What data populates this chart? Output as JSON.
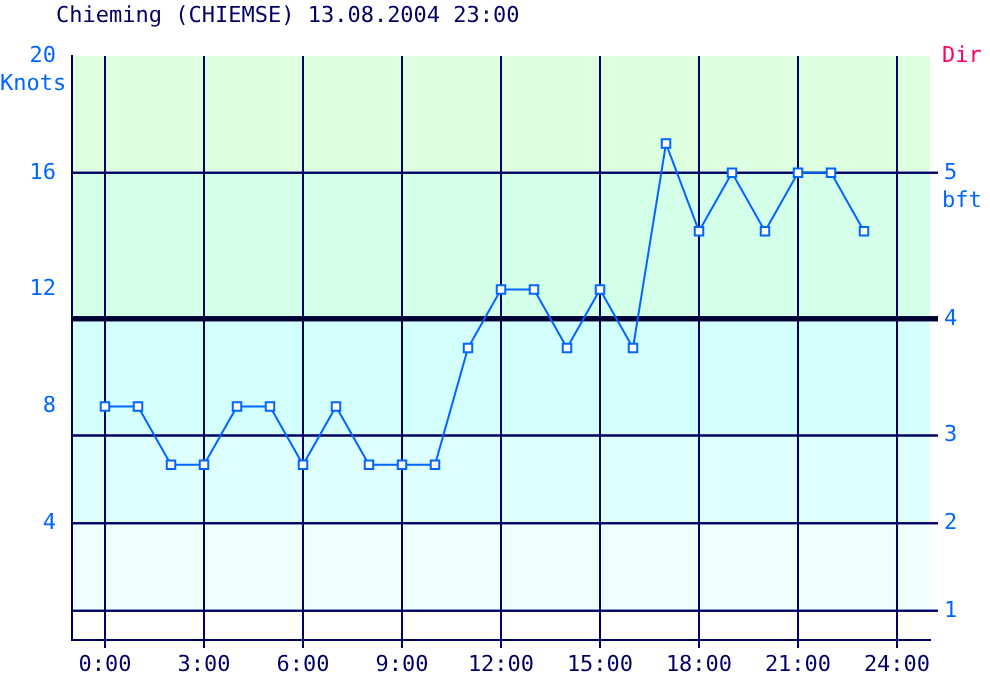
{
  "chart_data": {
    "type": "line",
    "title": "Chieming (CHIEMSE) 13.08.2004 23:00",
    "ylabel": "Knots",
    "annotations": [
      "Dir",
      "bft",
      "1",
      "2",
      "3",
      "4",
      "5"
    ],
    "x": [
      0,
      1,
      2,
      3,
      4,
      5,
      6,
      7,
      8,
      9,
      10,
      11,
      12,
      13,
      14,
      15,
      16,
      17,
      18,
      19,
      20,
      21,
      22,
      23
    ],
    "series": [
      {
        "color": "#0066ff",
        "values": [
          8,
          8,
          6,
          6,
          8,
          8,
          6,
          8,
          6,
          6,
          6,
          10,
          12,
          12,
          10,
          12,
          10,
          17,
          14,
          16,
          14,
          16,
          16,
          14
        ]
      }
    ],
    "xlim": [
      -1,
      25
    ],
    "xticks": [
      {
        "value": 0,
        "label": "0:00"
      },
      {
        "value": 3,
        "label": "3:00"
      },
      {
        "value": 6,
        "label": "6:00"
      },
      {
        "value": 9,
        "label": "9:00"
      },
      {
        "value": 12,
        "label": "12:00"
      },
      {
        "value": 15,
        "label": "15:00"
      },
      {
        "value": 18,
        "label": "18:00"
      },
      {
        "value": 21,
        "label": "21:00"
      },
      {
        "value": 24,
        "label": "24:00"
      }
    ],
    "ylim": [
      0,
      20
    ],
    "yticks": [
      4,
      8,
      12,
      16,
      20
    ],
    "bands": [
      {
        "axis": "y",
        "from": 16,
        "to": 20,
        "color": "#ddffe0"
      },
      {
        "axis": "y",
        "from": 11,
        "to": 16,
        "color": "#d4ffe8"
      },
      {
        "axis": "y",
        "from": 7,
        "to": 11,
        "color": "#d4ffff"
      },
      {
        "axis": "y",
        "from": 4,
        "to": 7,
        "color": "#ddffff"
      },
      {
        "axis": "y",
        "from": 1,
        "to": 4,
        "color": "#eeffff"
      }
    ],
    "ref_lines": [
      {
        "axis": "y",
        "value": 1,
        "color": "#000066"
      },
      {
        "axis": "y",
        "value": 4,
        "color": "#000066"
      },
      {
        "axis": "y",
        "value": 7,
        "color": "#000066"
      },
      {
        "axis": "y",
        "value": 11,
        "color": "#000033"
      },
      {
        "axis": "y",
        "value": 16,
        "color": "#000066"
      }
    ],
    "grid": "x",
    "marker": "square",
    "line_style": "solid"
  }
}
